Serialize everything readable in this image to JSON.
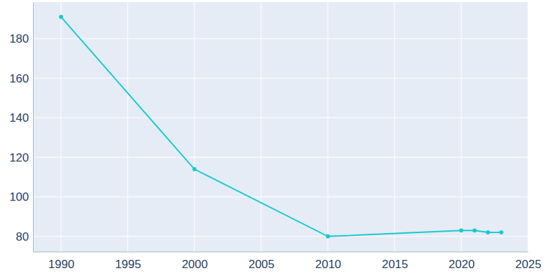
{
  "chart_data": {
    "type": "line",
    "x": [
      1990,
      2000,
      2010,
      2020,
      2021,
      2022,
      2023
    ],
    "values": [
      191,
      114,
      80,
      83,
      83,
      82,
      82
    ],
    "color": "#17c9d3",
    "marker": "circle",
    "xlim": [
      1987.9,
      2025
    ],
    "ylim": [
      72.3,
      198.5
    ],
    "xticks": [
      1990,
      1995,
      2000,
      2005,
      2010,
      2015,
      2020,
      2025
    ],
    "yticks": [
      80,
      100,
      120,
      140,
      160,
      180
    ],
    "grid": true
  }
}
